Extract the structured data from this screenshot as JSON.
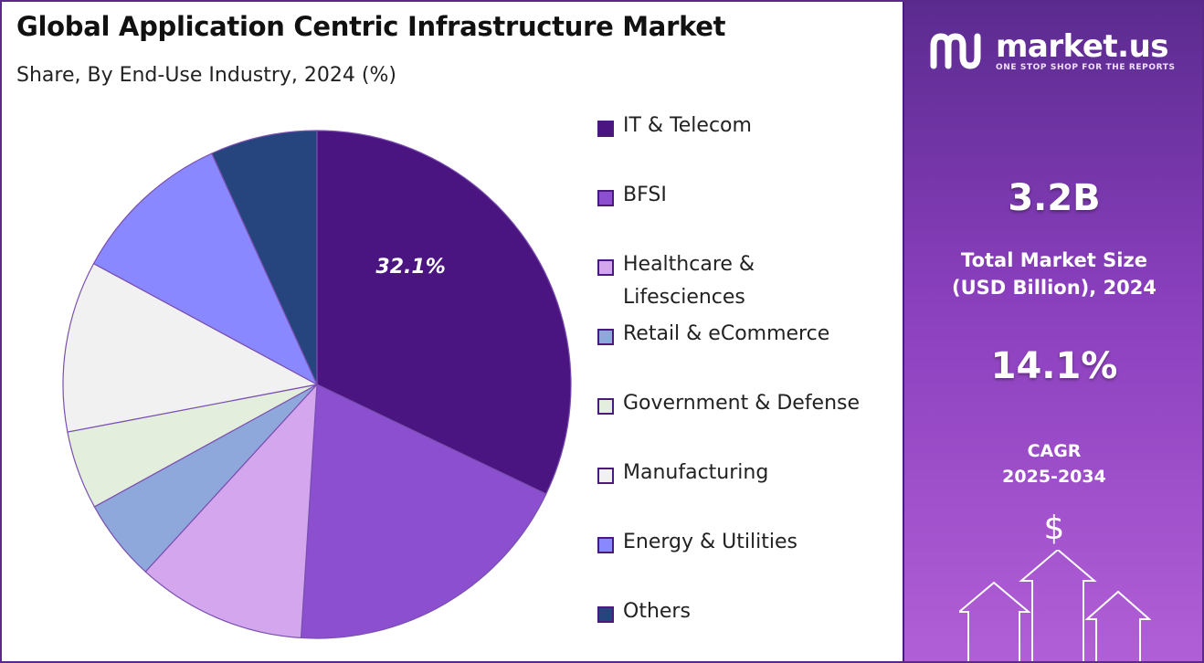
{
  "header": {
    "title": "Global Application Centric Infrastructure Market",
    "subtitle": "Share, By End-Use Industry, 2024 (%)"
  },
  "chart_data": {
    "type": "pie",
    "categories": [
      "IT & Telecom",
      "BFSI",
      "Healthcare & Lifesciences",
      "Retail & eCommerce",
      "Government & Defense",
      "Manufacturing",
      "Energy & Utilities",
      "Others"
    ],
    "values": [
      32.1,
      18.9,
      10.8,
      5.2,
      5.0,
      10.9,
      10.3,
      6.8
    ],
    "colors": [
      "#4b1581",
      "#8b4fd0",
      "#d3a6ee",
      "#8fa8dc",
      "#e3efdc",
      "#f1f1f1",
      "#8a88ff",
      "#26457e"
    ],
    "data_labels": [
      "32.1%",
      "",
      "",
      "",
      "",
      "",
      "",
      ""
    ],
    "start_angle_deg": 0,
    "direction": "clockwise",
    "legend_position": "right"
  },
  "legend": {
    "items": [
      {
        "label": "IT & Telecom",
        "color": "#4b1581"
      },
      {
        "label": "BFSI",
        "color": "#8b4fd0"
      },
      {
        "label": "Healthcare & Lifesciences",
        "color": "#d3a6ee"
      },
      {
        "label": "Retail & eCommerce",
        "color": "#8fa8dc"
      },
      {
        "label": "Government & Defense",
        "color": "#e3efdc"
      },
      {
        "label": "Manufacturing",
        "color": "#f1f1f1"
      },
      {
        "label": "Energy & Utilities",
        "color": "#8a88ff"
      },
      {
        "label": "Others",
        "color": "#26457e"
      }
    ]
  },
  "sidebar": {
    "brand_name": "market.us",
    "brand_tagline": "ONE STOP SHOP FOR THE REPORTS",
    "market_size_value": "3.2B",
    "market_size_label_line1": "Total Market Size",
    "market_size_label_line2": "(USD Billion), 2024",
    "cagr_value": "14.1%",
    "cagr_label_line1": "CAGR",
    "cagr_label_line2": "2025-2034",
    "dollar_symbol": "$",
    "icons": [
      "market-us-logo-icon",
      "growth-arrows-icon"
    ]
  }
}
